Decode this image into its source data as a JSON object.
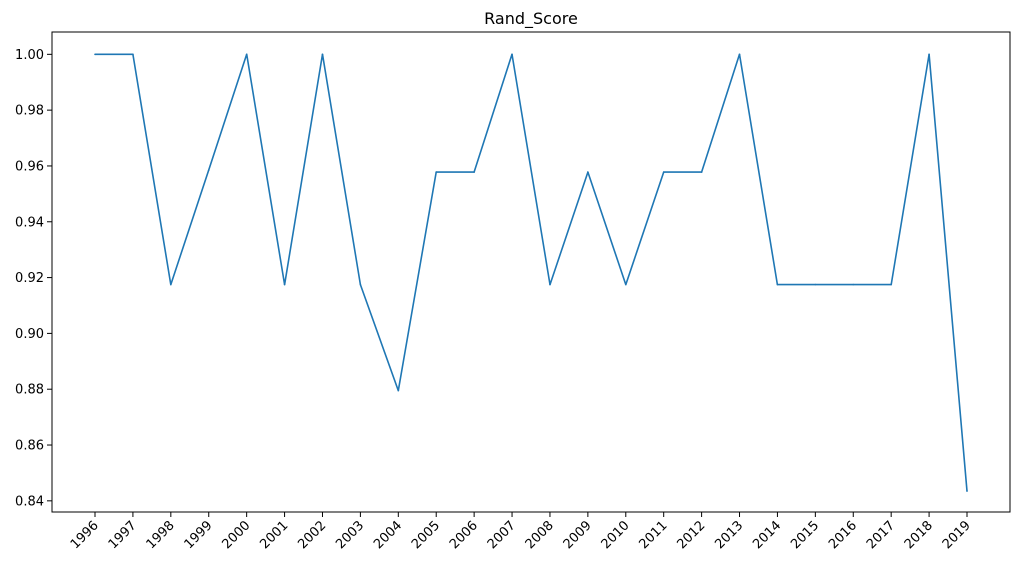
{
  "chart_data": {
    "type": "line",
    "title": "Rand_Score",
    "xlabel": "",
    "ylabel": "",
    "x": [
      "1996",
      "1997",
      "1998",
      "1999",
      "2000",
      "2001",
      "2002",
      "2003",
      "2004",
      "2005",
      "2006",
      "2007",
      "2008",
      "2009",
      "2010",
      "2011",
      "2012",
      "2013",
      "2014",
      "2015",
      "2016",
      "2017",
      "2018",
      "2019"
    ],
    "series": [
      {
        "values": [
          1.0,
          1.0,
          0.9175,
          0.9585,
          1.0,
          0.9175,
          1.0,
          0.9175,
          0.8795,
          0.9578,
          0.9578,
          1.0,
          0.9175,
          0.9578,
          0.9175,
          0.9578,
          0.9578,
          1.0,
          0.9175,
          0.9175,
          0.9175,
          0.9175,
          1.0,
          0.8435
        ],
        "color": "#1f77b4"
      }
    ],
    "yticks": [
      "0.84",
      "0.86",
      "0.88",
      "0.90",
      "0.92",
      "0.94",
      "0.96",
      "0.98",
      "1.00"
    ],
    "ylim": [
      0.836,
      1.008
    ],
    "grid": false,
    "legend": "none"
  }
}
